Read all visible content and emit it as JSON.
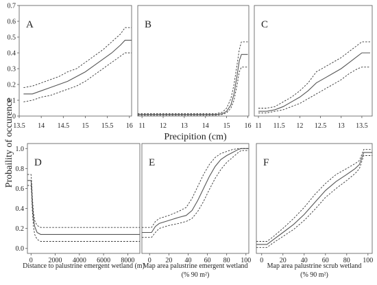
{
  "figure": {
    "y_axis_title": "Probaility of occurence",
    "top_row_x_title": "Precipition (cm)"
  },
  "chart_data": [
    {
      "type": "line",
      "panel": "A",
      "xlim": [
        13.5,
        16.05
      ],
      "ylim": [
        0,
        0.7
      ],
      "x_ticks": [
        13.5,
        14,
        14.5,
        15,
        15.5,
        16
      ],
      "x_tick_labels": [
        "13.5",
        "14",
        "14.5",
        "15",
        "15.5",
        "16"
      ],
      "y_ticks": [
        0,
        0.1,
        0.2,
        0.3,
        0.4,
        0.5,
        0.6,
        0.7
      ],
      "y_tick_labels": [
        "0",
        "0.1",
        "0.2",
        "0.3",
        "0.4",
        "0.5",
        "0.6",
        "0.7"
      ],
      "series": [
        {
          "role": "mean",
          "x": [
            13.6,
            13.8,
            14.0,
            14.2,
            14.4,
            14.6,
            14.8,
            15.0,
            15.2,
            15.4,
            15.6,
            15.8,
            15.9,
            16.05
          ],
          "y": [
            0.14,
            0.14,
            0.16,
            0.18,
            0.2,
            0.22,
            0.25,
            0.28,
            0.32,
            0.36,
            0.4,
            0.45,
            0.48,
            0.48
          ]
        },
        {
          "role": "upper",
          "x": [
            13.6,
            13.8,
            14.0,
            14.2,
            14.4,
            14.6,
            14.8,
            15.0,
            15.2,
            15.4,
            15.6,
            15.8,
            15.9,
            16.05
          ],
          "y": [
            0.18,
            0.19,
            0.21,
            0.23,
            0.25,
            0.28,
            0.3,
            0.34,
            0.38,
            0.42,
            0.47,
            0.52,
            0.56,
            0.56
          ]
        },
        {
          "role": "lower",
          "x": [
            13.6,
            13.8,
            14.0,
            14.2,
            14.4,
            14.6,
            14.8,
            15.0,
            15.2,
            15.4,
            15.6,
            15.8,
            15.9,
            16.05
          ],
          "y": [
            0.09,
            0.1,
            0.12,
            0.13,
            0.15,
            0.17,
            0.19,
            0.22,
            0.26,
            0.3,
            0.34,
            0.38,
            0.4,
            0.4
          ]
        }
      ]
    },
    {
      "type": "line",
      "panel": "B",
      "xlim": [
        10.8,
        16.05
      ],
      "ylim": [
        0,
        0.7
      ],
      "x_ticks": [
        11,
        12,
        13,
        14,
        15,
        16
      ],
      "x_tick_labels": [
        "11",
        "12",
        "13",
        "14",
        "15",
        "16"
      ],
      "y_ticks": [],
      "y_tick_labels": [],
      "series": [
        {
          "role": "mean",
          "x": [
            10.8,
            11.5,
            12.5,
            13.5,
            14.5,
            14.8,
            15.0,
            15.2,
            15.35,
            15.5,
            15.6,
            15.7,
            16.0
          ],
          "y": [
            0.01,
            0.01,
            0.01,
            0.01,
            0.01,
            0.015,
            0.03,
            0.07,
            0.14,
            0.26,
            0.35,
            0.39,
            0.39
          ]
        },
        {
          "role": "upper",
          "x": [
            10.8,
            11.5,
            12.5,
            13.5,
            14.5,
            14.8,
            15.0,
            15.2,
            15.35,
            15.5,
            15.6,
            15.7,
            16.0
          ],
          "y": [
            0.015,
            0.015,
            0.015,
            0.015,
            0.015,
            0.025,
            0.05,
            0.11,
            0.2,
            0.33,
            0.42,
            0.47,
            0.47
          ]
        },
        {
          "role": "lower",
          "x": [
            10.8,
            11.5,
            12.5,
            13.5,
            14.5,
            14.8,
            15.0,
            15.2,
            15.35,
            15.5,
            15.6,
            15.7,
            16.0
          ],
          "y": [
            0.005,
            0.005,
            0.005,
            0.005,
            0.005,
            0.01,
            0.02,
            0.05,
            0.1,
            0.2,
            0.28,
            0.31,
            0.31
          ]
        }
      ]
    },
    {
      "type": "line",
      "panel": "C",
      "xlim": [
        10.9,
        13.75
      ],
      "ylim": [
        0,
        0.7
      ],
      "x_ticks": [
        11,
        11.5,
        12,
        12.5,
        13,
        13.5
      ],
      "x_tick_labels": [
        "11",
        "11.5",
        "12",
        "12.5",
        "13",
        "13.5"
      ],
      "y_ticks": [],
      "y_tick_labels": [],
      "series": [
        {
          "role": "mean",
          "x": [
            11.0,
            11.2,
            11.4,
            11.6,
            11.8,
            12.0,
            12.2,
            12.4,
            12.6,
            12.8,
            13.0,
            13.2,
            13.4,
            13.5,
            13.7
          ],
          "y": [
            0.03,
            0.03,
            0.04,
            0.06,
            0.09,
            0.12,
            0.16,
            0.21,
            0.24,
            0.27,
            0.3,
            0.34,
            0.38,
            0.4,
            0.4
          ]
        },
        {
          "role": "upper",
          "x": [
            11.0,
            11.2,
            11.4,
            11.6,
            11.8,
            12.0,
            12.2,
            12.4,
            12.6,
            12.8,
            13.0,
            13.2,
            13.4,
            13.5,
            13.7
          ],
          "y": [
            0.05,
            0.05,
            0.06,
            0.09,
            0.12,
            0.16,
            0.21,
            0.28,
            0.31,
            0.34,
            0.37,
            0.41,
            0.45,
            0.47,
            0.47
          ]
        },
        {
          "role": "lower",
          "x": [
            11.0,
            11.2,
            11.4,
            11.6,
            11.8,
            12.0,
            12.2,
            12.4,
            12.6,
            12.8,
            13.0,
            13.2,
            13.4,
            13.5,
            13.7
          ],
          "y": [
            0.02,
            0.02,
            0.03,
            0.04,
            0.06,
            0.08,
            0.11,
            0.14,
            0.17,
            0.2,
            0.23,
            0.27,
            0.3,
            0.31,
            0.31
          ]
        }
      ]
    },
    {
      "type": "line",
      "panel": "D",
      "xlabel": "Distance to palustrine emergent wetland (m)",
      "xlabel_sub": "",
      "xlim": [
        -300,
        9000
      ],
      "ylim": [
        -0.05,
        1.05
      ],
      "x_ticks": [
        0,
        2000,
        4000,
        6000,
        8000
      ],
      "x_tick_labels": [
        "0",
        "2000",
        "4000",
        "6000",
        "8000"
      ],
      "y_ticks": [
        0,
        0.2,
        0.4,
        0.6,
        0.8,
        1.0
      ],
      "y_tick_labels": [
        "0.0",
        "0.2",
        "0.4",
        "0.6",
        "0.8",
        "1.0"
      ],
      "series": [
        {
          "role": "mean",
          "x": [
            -300,
            0,
            50,
            100,
            200,
            300,
            500,
            800,
            1200,
            3000,
            6000,
            9000
          ],
          "y": [
            0.68,
            0.68,
            0.6,
            0.45,
            0.3,
            0.22,
            0.16,
            0.14,
            0.14,
            0.14,
            0.14,
            0.14
          ]
        },
        {
          "role": "upper",
          "x": [
            -300,
            0,
            50,
            100,
            200,
            300,
            500,
            800,
            1200,
            3000,
            6000,
            9000
          ],
          "y": [
            0.74,
            0.74,
            0.66,
            0.52,
            0.36,
            0.28,
            0.23,
            0.21,
            0.21,
            0.21,
            0.21,
            0.21
          ]
        },
        {
          "role": "lower",
          "x": [
            -300,
            0,
            50,
            100,
            200,
            300,
            500,
            800,
            1200,
            3000,
            6000,
            9000
          ],
          "y": [
            0.63,
            0.63,
            0.55,
            0.38,
            0.22,
            0.14,
            0.09,
            0.07,
            0.07,
            0.07,
            0.07,
            0.07
          ]
        }
      ]
    },
    {
      "type": "line",
      "panel": "E",
      "xlabel": "Map area palustrine emergent wetland",
      "xlabel_sub": "(% 90 m²)",
      "xlim": [
        -8,
        103
      ],
      "ylim": [
        -0.05,
        1.05
      ],
      "x_ticks": [
        0,
        20,
        40,
        60,
        80,
        100
      ],
      "x_tick_labels": [
        "0",
        "20",
        "40",
        "60",
        "80",
        "100"
      ],
      "y_ticks": [],
      "y_tick_labels": [],
      "series": [
        {
          "role": "mean",
          "x": [
            -8,
            2,
            6,
            10,
            20,
            30,
            38,
            44,
            50,
            56,
            62,
            68,
            74,
            80,
            86,
            92,
            95,
            103
          ],
          "y": [
            0.16,
            0.16,
            0.22,
            0.25,
            0.28,
            0.31,
            0.33,
            0.38,
            0.48,
            0.6,
            0.72,
            0.82,
            0.89,
            0.93,
            0.96,
            0.99,
            1.0,
            1.0
          ]
        },
        {
          "role": "upper",
          "x": [
            -8,
            2,
            6,
            10,
            20,
            30,
            38,
            44,
            50,
            56,
            62,
            68,
            74,
            80,
            86,
            92,
            95,
            103
          ],
          "y": [
            0.21,
            0.21,
            0.27,
            0.3,
            0.33,
            0.37,
            0.41,
            0.5,
            0.62,
            0.74,
            0.84,
            0.91,
            0.95,
            0.97,
            0.99,
            1.0,
            1.0,
            1.0
          ]
        },
        {
          "role": "lower",
          "x": [
            -8,
            2,
            6,
            10,
            20,
            30,
            38,
            44,
            50,
            56,
            62,
            68,
            74,
            80,
            86,
            92,
            95,
            103
          ],
          "y": [
            0.11,
            0.11,
            0.16,
            0.2,
            0.23,
            0.25,
            0.27,
            0.3,
            0.37,
            0.47,
            0.59,
            0.7,
            0.79,
            0.86,
            0.91,
            0.96,
            0.98,
            0.98
          ]
        }
      ]
    },
    {
      "type": "line",
      "panel": "F",
      "xlabel": "Map area palustrine scrub wetland",
      "xlabel_sub": "(% 90 m²)",
      "xlim": [
        -5,
        104
      ],
      "ylim": [
        -0.05,
        1.05
      ],
      "x_ticks": [
        0,
        20,
        40,
        60,
        80,
        100
      ],
      "x_tick_labels": [
        "0",
        "20",
        "40",
        "60",
        "80",
        "100"
      ],
      "y_ticks": [],
      "y_tick_labels": [],
      "series": [
        {
          "role": "mean",
          "x": [
            -5,
            5,
            10,
            20,
            30,
            40,
            50,
            60,
            70,
            80,
            88,
            92,
            96,
            104
          ],
          "y": [
            0.04,
            0.04,
            0.08,
            0.16,
            0.24,
            0.34,
            0.46,
            0.58,
            0.67,
            0.74,
            0.8,
            0.84,
            0.96,
            0.96
          ]
        },
        {
          "role": "upper",
          "x": [
            -5,
            5,
            10,
            20,
            30,
            40,
            50,
            60,
            70,
            80,
            88,
            92,
            96,
            104
          ],
          "y": [
            0.07,
            0.07,
            0.11,
            0.2,
            0.3,
            0.41,
            0.54,
            0.65,
            0.74,
            0.8,
            0.85,
            0.88,
            0.99,
            0.99
          ]
        },
        {
          "role": "lower",
          "x": [
            -5,
            5,
            10,
            20,
            30,
            40,
            50,
            60,
            70,
            80,
            88,
            92,
            96,
            104
          ],
          "y": [
            0.01,
            0.01,
            0.05,
            0.12,
            0.19,
            0.28,
            0.39,
            0.51,
            0.6,
            0.68,
            0.75,
            0.8,
            0.93,
            0.93
          ]
        }
      ]
    }
  ]
}
